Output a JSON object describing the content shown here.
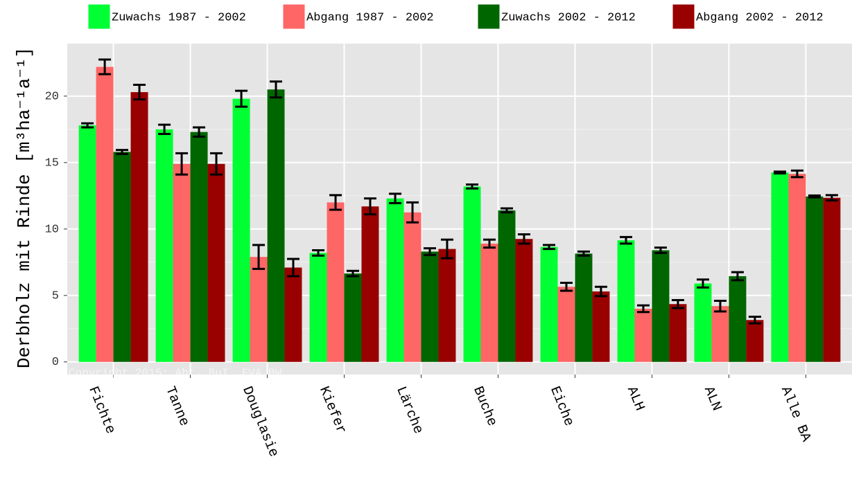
{
  "chart_data": {
    "type": "bar",
    "y_label": "Derbholz mit Rinde [m³ha⁻¹a⁻¹]",
    "annotation": "Copyright 2015: Abt. BuI, FVA BW",
    "categories": [
      "Fichte",
      "Tanne",
      "Douglasie",
      "Kiefer",
      "Lärche",
      "Buche",
      "Eiche",
      "ALH",
      "ALN",
      "Alle BA"
    ],
    "series": [
      {
        "name": "Zuwachs 1987 - 2002",
        "color": "#00ff33",
        "values": [
          17.8,
          17.5,
          19.8,
          8.2,
          12.3,
          13.2,
          8.65,
          9.15,
          5.9,
          14.25
        ],
        "errors": [
          0.15,
          0.35,
          0.6,
          0.2,
          0.35,
          0.15,
          0.15,
          0.25,
          0.3,
          0.07
        ]
      },
      {
        "name": "Abgang 1987 - 2002",
        "color": "#ff6666",
        "values": [
          22.2,
          14.9,
          7.9,
          12.0,
          11.25,
          8.9,
          5.65,
          4.0,
          4.2,
          14.15
        ],
        "errors": [
          0.55,
          0.8,
          0.9,
          0.55,
          0.75,
          0.3,
          0.3,
          0.25,
          0.4,
          0.25
        ]
      },
      {
        "name": "Zuwachs 2002 - 2012",
        "color": "#006600",
        "values": [
          15.8,
          17.3,
          20.5,
          6.65,
          8.3,
          11.4,
          8.15,
          8.4,
          6.45,
          12.45
        ],
        "errors": [
          0.15,
          0.35,
          0.6,
          0.2,
          0.25,
          0.15,
          0.15,
          0.2,
          0.3,
          0.07
        ]
      },
      {
        "name": "Abgang 2002 - 2012",
        "color": "#990000",
        "values": [
          20.3,
          14.9,
          7.1,
          11.7,
          8.5,
          9.25,
          5.3,
          4.35,
          3.15,
          12.35
        ],
        "errors": [
          0.55,
          0.8,
          0.65,
          0.6,
          0.7,
          0.35,
          0.35,
          0.3,
          0.25,
          0.2
        ]
      }
    ],
    "ylim": [
      -0.95,
      23.95
    ],
    "yticks": [
      0,
      5,
      10,
      15,
      20
    ],
    "grid": true,
    "legend": "top"
  }
}
